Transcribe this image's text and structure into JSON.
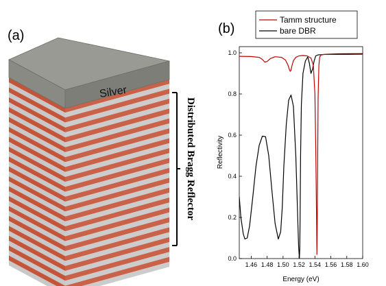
{
  "panel_a": {
    "label": "(a)",
    "metal_label": "Silver",
    "stack_label": "Distributed Bragg Reflector",
    "colors": {
      "layer_a": "#c4553a",
      "layer_b": "#c8c8c8",
      "metal_top": "#9a9a94",
      "metal_side": "#7e7e78"
    }
  },
  "panel_b": {
    "label": "(b)"
  },
  "chart_data": {
    "type": "line",
    "xlabel": "Energy (eV)",
    "ylabel": "Reflectivity",
    "xlim": [
      1.445,
      1.6
    ],
    "ylim": [
      0.0,
      1.03
    ],
    "xticks": [
      "1.46",
      "1.48",
      "1.50",
      "1.52",
      "1.54",
      "1.56",
      "1.58",
      "1.60"
    ],
    "yticks": [
      "0.0",
      "0.2",
      "0.4",
      "0.6",
      "0.8",
      "1.0"
    ],
    "legend_position": "top",
    "series": [
      {
        "name": "Tamm structure",
        "color": "#c00000",
        "x": [
          1.445,
          1.46,
          1.47,
          1.474,
          1.477,
          1.48,
          1.484,
          1.49,
          1.498,
          1.503,
          1.506,
          1.508,
          1.509,
          1.51,
          1.511,
          1.513,
          1.516,
          1.52,
          1.525,
          1.53,
          1.535,
          1.538,
          1.54,
          1.541,
          1.542,
          1.5425,
          1.543,
          1.5435,
          1.544,
          1.545,
          1.546,
          1.548,
          1.552,
          1.56,
          1.58,
          1.6
        ],
        "y": [
          0.983,
          0.982,
          0.978,
          0.968,
          0.955,
          0.958,
          0.972,
          0.981,
          0.978,
          0.965,
          0.942,
          0.918,
          0.91,
          0.915,
          0.935,
          0.962,
          0.978,
          0.985,
          0.987,
          0.985,
          0.975,
          0.94,
          0.8,
          0.55,
          0.22,
          0.02,
          0.2,
          0.5,
          0.78,
          0.94,
          0.98,
          0.99,
          0.992,
          0.992,
          0.992,
          0.993
        ]
      },
      {
        "name": "bare DBR",
        "color": "#000000",
        "x": [
          1.445,
          1.447,
          1.45,
          1.452,
          1.455,
          1.458,
          1.462,
          1.466,
          1.47,
          1.474,
          1.478,
          1.482,
          1.486,
          1.49,
          1.494,
          1.497,
          1.499,
          1.501,
          1.504,
          1.507,
          1.51,
          1.513,
          1.516,
          1.518,
          1.5195,
          1.5205,
          1.521,
          1.5215,
          1.522,
          1.523,
          1.525,
          1.528,
          1.531,
          1.533,
          1.535,
          1.537,
          1.539,
          1.541,
          1.544,
          1.548,
          1.555,
          1.57,
          1.6
        ],
        "y": [
          0.3,
          0.2,
          0.12,
          0.095,
          0.1,
          0.16,
          0.3,
          0.45,
          0.55,
          0.595,
          0.592,
          0.5,
          0.33,
          0.17,
          0.095,
          0.13,
          0.25,
          0.45,
          0.65,
          0.77,
          0.795,
          0.74,
          0.5,
          0.25,
          0.06,
          0.0,
          0.05,
          0.25,
          0.5,
          0.75,
          0.9,
          0.96,
          0.98,
          0.95,
          0.9,
          0.92,
          0.96,
          0.985,
          0.99,
          0.991,
          0.993,
          0.995,
          0.996
        ]
      }
    ]
  }
}
